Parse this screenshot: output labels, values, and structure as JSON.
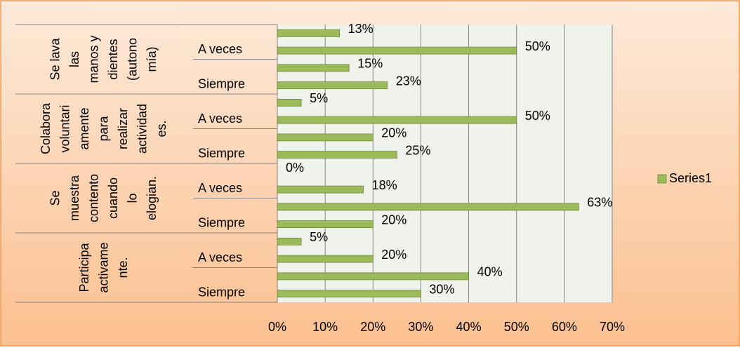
{
  "chart_data": {
    "type": "bar",
    "orientation": "horizontal",
    "groups": [
      [
        "Se lava",
        "las",
        "manos y",
        "dientes",
        "(autono",
        "mía)"
      ],
      [
        "Colabora",
        "voluntari",
        "amente",
        "para",
        "realizar",
        "actividad",
        "es."
      ],
      [
        "Se",
        "muestra",
        "contento",
        "cuando",
        "lo",
        "elogian."
      ],
      [
        "Participa",
        "activame",
        "nte."
      ]
    ],
    "categories": [
      null,
      "A veces",
      null,
      "Siempre",
      null,
      "A veces",
      null,
      "Siempre",
      null,
      "A veces",
      null,
      "Siempre",
      null,
      "A veces",
      null,
      "Siempre"
    ],
    "series": [
      {
        "name": "Series1",
        "color": "#9bbb59",
        "values": [
          13,
          50,
          15,
          23,
          5,
          50,
          20,
          25,
          0,
          18,
          63,
          20,
          5,
          20,
          40,
          30
        ],
        "value_labels": [
          "13%",
          "50%",
          "15%",
          "23%",
          "5%",
          "50%",
          "20%",
          "25%",
          "0%",
          "18%",
          "63%",
          "20%",
          "5%",
          "20%",
          "40%",
          "30%"
        ]
      }
    ],
    "xlim": [
      0,
      70
    ],
    "xticks": [
      {
        "value": 0,
        "label": "0%"
      },
      {
        "value": 10,
        "label": "10%"
      },
      {
        "value": 20,
        "label": "20%"
      },
      {
        "value": 30,
        "label": "30%"
      },
      {
        "value": 40,
        "label": "40%"
      },
      {
        "value": 50,
        "label": "50%"
      },
      {
        "value": 60,
        "label": "60%"
      },
      {
        "value": 70,
        "label": "70%"
      }
    ],
    "grid": true,
    "legend": "right"
  }
}
